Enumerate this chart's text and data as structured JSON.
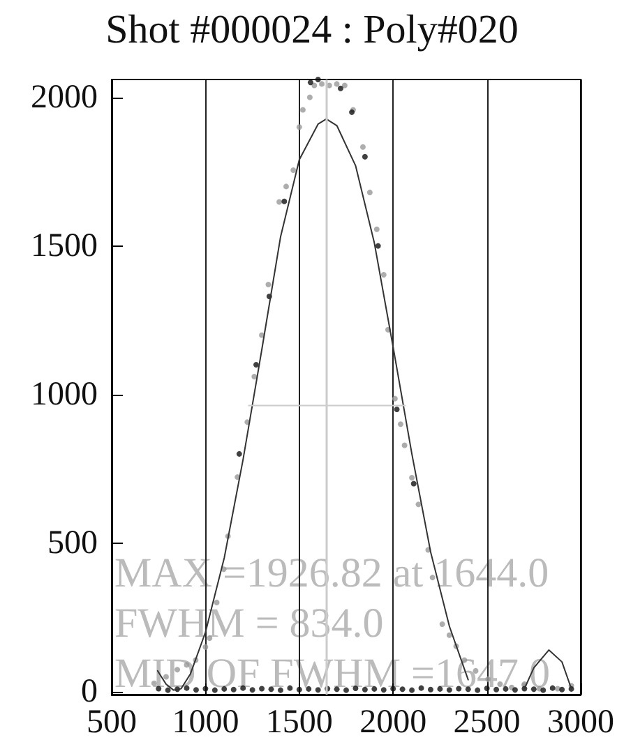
{
  "chart_data": {
    "type": "scatter",
    "title": "Shot #000024 : Poly#020",
    "xlim": [
      500,
      3000
    ],
    "xticks": [
      500,
      1000,
      1500,
      2000,
      2500,
      3000
    ],
    "ylim": [
      -10,
      2060
    ],
    "yticks": [
      0,
      500,
      1000,
      1500,
      2000
    ],
    "grid": "x",
    "series": [
      {
        "marker": "circle",
        "color": "#999999",
        "x": [
          726,
          790,
          850,
          900,
          948,
          1000,
          1022,
          1060,
          1097,
          1120,
          1170,
          1223,
          1260,
          1300,
          1335,
          1393,
          1430,
          1468,
          1500,
          1519,
          1556,
          1580,
          1620,
          1660,
          1700,
          1742,
          1787,
          1839,
          1876,
          1913,
          1950,
          1973,
          2010,
          2040,
          2061,
          2100,
          2135,
          2187,
          2210,
          2262,
          2300,
          2336,
          2380,
          2440,
          2506,
          2570,
          2632,
          2700,
          2780,
          2877,
          2950
        ],
        "values": [
          28,
          50,
          74,
          90,
          106,
          150,
          180,
          300,
          412,
          523,
          722,
          907,
          1060,
          1200,
          1370,
          1648,
          1700,
          1755,
          1900,
          1958,
          2000,
          2040,
          2045,
          2040,
          2045,
          2040,
          1958,
          1833,
          1680,
          1556,
          1403,
          1218,
          986,
          900,
          829,
          720,
          630,
          477,
          384,
          227,
          190,
          153,
          106,
          70,
          42,
          25,
          14,
          25,
          10,
          10,
          20
        ]
      },
      {
        "marker": "circle",
        "color": "#111111",
        "x": [
          750,
          800,
          850,
          900,
          950,
          1000,
          1050,
          1100,
          1150,
          1200,
          1250,
          1300,
          1350,
          1400,
          1450,
          1500,
          1550,
          1600,
          1650,
          1700,
          1750,
          1800,
          1850,
          1900,
          1950,
          2000,
          2050,
          2100,
          2150,
          2200,
          2250,
          2300,
          2350,
          2400,
          2450,
          2500,
          2550,
          2600,
          2650,
          2700,
          2750,
          2800,
          2850,
          2900,
          2950,
          1180,
          1270,
          1340,
          1420,
          1560,
          1600,
          1720,
          1780,
          1850,
          1920,
          2020,
          2110
        ],
        "values": [
          10,
          5,
          8,
          12,
          6,
          10,
          5,
          9,
          7,
          12,
          6,
          10,
          8,
          5,
          12,
          7,
          9,
          6,
          10,
          8,
          5,
          11,
          7,
          9,
          6,
          10,
          8,
          5,
          12,
          7,
          9,
          6,
          10,
          8,
          5,
          11,
          7,
          9,
          6,
          10,
          8,
          5,
          12,
          7,
          9,
          800,
          1100,
          1330,
          1650,
          2050,
          2060,
          2030,
          1950,
          1800,
          1500,
          950,
          700
        ]
      },
      {
        "type": "line",
        "marker": "none",
        "line_style": "solid",
        "color": "#333333",
        "x": [
          745,
          790,
          830,
          870,
          920,
          1000,
          1100,
          1200,
          1300,
          1400,
          1500,
          1600,
          1644,
          1700,
          1800,
          1900,
          2000,
          2100,
          2200,
          2300,
          2400,
          2440,
          2700,
          2750,
          2830,
          2900,
          2950
        ],
        "values": [
          70,
          25,
          5,
          10,
          60,
          200,
          450,
          780,
          1150,
          1530,
          1790,
          1910,
          1927,
          1905,
          1770,
          1510,
          1160,
          800,
          470,
          220,
          40,
          null,
          10,
          80,
          140,
          100,
          10
        ]
      },
      {
        "type": "line",
        "marker": "none",
        "line_style": "solid",
        "color": "#cccccc",
        "x": [
          1230,
          2064
        ],
        "values": [
          963,
          963
        ]
      }
    ],
    "ref_lines": [
      {
        "axis": "x",
        "value": 1647,
        "color": "#cccccc"
      }
    ],
    "annotations": [
      "MAX =1926.82 at 1644.0",
      "FWHM = 834.0",
      "MID OF FWHM =1647.0"
    ]
  }
}
